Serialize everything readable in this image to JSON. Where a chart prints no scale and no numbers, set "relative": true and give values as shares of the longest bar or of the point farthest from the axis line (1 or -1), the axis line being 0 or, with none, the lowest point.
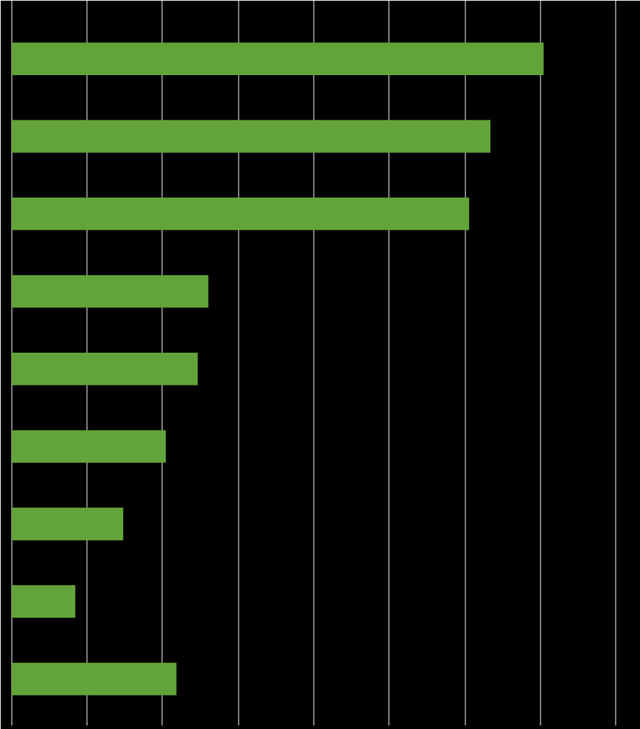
{
  "chart_data": {
    "type": "bar",
    "orientation": "horizontal",
    "relative": true,
    "categories": [
      null,
      null,
      null,
      null,
      null,
      null,
      null,
      null,
      null
    ],
    "values": [
      1,
      0.9,
      0.86,
      0.37,
      0.35,
      0.29,
      0.21,
      0.12,
      0.31
    ],
    "color": "#63a43a",
    "grid": "x"
  }
}
